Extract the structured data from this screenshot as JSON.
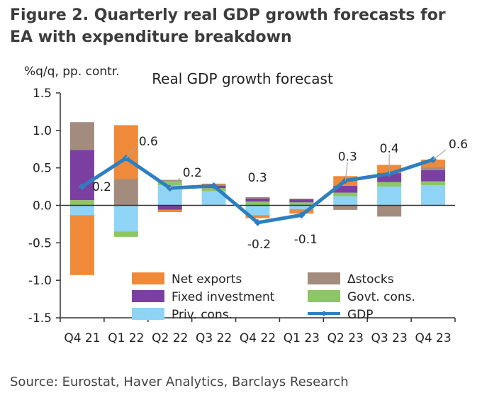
{
  "figure": {
    "title": "Figure 2. Quarterly real GDP growth forecasts for EA with expenditure breakdown",
    "source": "Source: Eurostat, Haver Analytics, Barclays Research"
  },
  "chart_data": {
    "type": "bar",
    "stacked": true,
    "title": "Real GDP growth forecast",
    "ylabel": "%q/q, pp. contr.",
    "xlabel": "",
    "ylim": [
      -1.5,
      1.5
    ],
    "yticks": [
      -1.5,
      -1.0,
      -0.5,
      0.0,
      0.5,
      1.0,
      1.5
    ],
    "ytick_labels": [
      "-1.5",
      "-1.0",
      "-0.5",
      "0.0",
      "0.5",
      "1.0",
      "1.5"
    ],
    "categories": [
      "Q4 21",
      "Q1 22",
      "Q2 22",
      "Q3 22",
      "Q4 22",
      "Q1 23",
      "Q2 23",
      "Q3 23",
      "Q4 23"
    ],
    "series": [
      {
        "name": "Priv. cons.",
        "color": "#8fd4f5",
        "values": [
          -0.13,
          -0.35,
          0.27,
          0.19,
          -0.13,
          -0.05,
          0.12,
          0.25,
          0.27
        ]
      },
      {
        "name": "Govt. cons.",
        "color": "#8cc665",
        "values": [
          0.07,
          -0.07,
          0.05,
          0.04,
          0.05,
          0.04,
          0.05,
          0.06,
          0.05
        ]
      },
      {
        "name": "Fixed investment",
        "color": "#7b3fa2",
        "values": [
          0.67,
          0.0,
          -0.06,
          0.03,
          0.04,
          0.04,
          0.09,
          0.12,
          0.15
        ]
      },
      {
        "name": "Δstocks",
        "color": "#a38b7e",
        "values": [
          0.37,
          0.35,
          0.02,
          0.02,
          0.02,
          0.01,
          -0.06,
          -0.15,
          0.04
        ]
      },
      {
        "name": "Net exports",
        "color": "#ef8a3a",
        "values": [
          -0.8,
          0.72,
          -0.03,
          0.01,
          -0.04,
          -0.06,
          0.13,
          0.11,
          0.1
        ]
      }
    ],
    "line": {
      "name": "GDP",
      "color": "#2e7fbf",
      "values": [
        0.25,
        0.63,
        0.23,
        0.26,
        -0.23,
        -0.13,
        0.33,
        0.42,
        0.61
      ]
    },
    "data_labels": [
      "0.2",
      "0.6",
      "0.2",
      "0.3",
      "-0.2",
      "-0.1",
      "0.3",
      "0.4",
      "0.6"
    ],
    "legend": {
      "placement": "bottom",
      "entries": [
        "Net exports",
        "Δstocks",
        "Fixed investment",
        "Govt. cons.",
        "Priv. cons.",
        "GDP"
      ]
    }
  }
}
